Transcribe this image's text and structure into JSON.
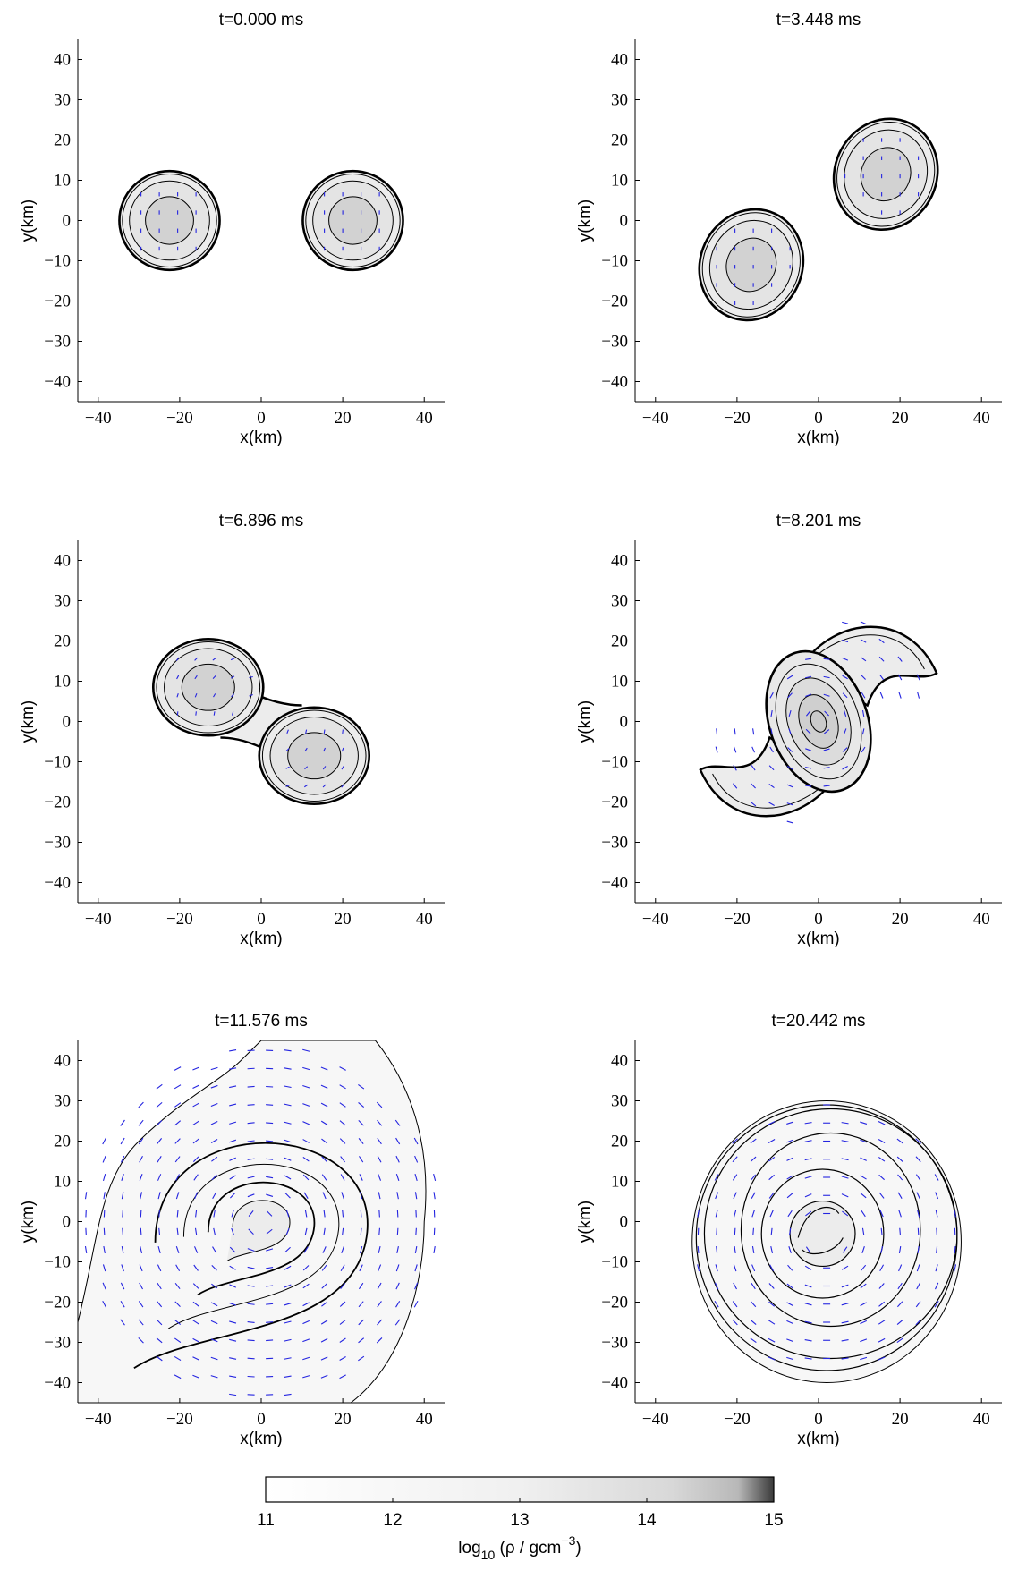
{
  "chart_data": [
    {
      "type": "contour",
      "title": "t=0.000 ms",
      "xlabel": "x(km)",
      "ylabel": "y(km)",
      "xlim": [
        -45,
        45
      ],
      "ylim": [
        -45,
        45
      ],
      "xticks": [
        -40,
        -20,
        0,
        20,
        40
      ],
      "yticks": [
        40,
        30,
        20,
        10,
        0,
        -10,
        -20,
        -30,
        -40
      ],
      "stars": [
        {
          "cx": -22.5,
          "cy": 0,
          "rx": 12.3,
          "ry": 12.3,
          "angle": 0
        },
        {
          "cx": 22.5,
          "cy": 0,
          "rx": 12.3,
          "ry": 12.3,
          "angle": 0
        }
      ]
    },
    {
      "type": "contour",
      "title": "t=3.448 ms",
      "xlabel": "x(km)",
      "ylabel": "y(km)",
      "xlim": [
        -45,
        45
      ],
      "ylim": [
        -45,
        45
      ],
      "xticks": [
        -40,
        -20,
        0,
        20,
        40
      ],
      "yticks": [
        40,
        30,
        20,
        10,
        0,
        -10,
        -20,
        -30,
        -40
      ],
      "stars": [
        {
          "cx": -16.5,
          "cy": -11,
          "rx": 12.5,
          "ry": 14,
          "angle": -25
        },
        {
          "cx": 16.5,
          "cy": 11.5,
          "rx": 12.5,
          "ry": 14,
          "angle": -25
        }
      ]
    },
    {
      "type": "contour",
      "title": "t=6.896 ms",
      "xlabel": "x(km)",
      "ylabel": "y(km)",
      "xlim": [
        -45,
        45
      ],
      "ylim": [
        -45,
        45
      ],
      "xticks": [
        -40,
        -20,
        0,
        20,
        40
      ],
      "yticks": [
        40,
        30,
        20,
        10,
        0,
        -10,
        -20,
        -30,
        -40
      ],
      "stars": [
        {
          "cx": -13,
          "cy": 8.5,
          "rx": 13.5,
          "ry": 12,
          "angle": 0
        },
        {
          "cx": 13,
          "cy": -8.5,
          "rx": 13.5,
          "ry": 12,
          "angle": 0
        }
      ]
    },
    {
      "type": "contour",
      "title": "t=8.201 ms",
      "xlabel": "x(km)",
      "ylabel": "y(km)",
      "xlim": [
        -45,
        45
      ],
      "ylim": [
        -45,
        45
      ],
      "xticks": [
        -40,
        -20,
        0,
        20,
        40
      ],
      "yticks": [
        40,
        30,
        20,
        10,
        0,
        -10,
        -20,
        -30,
        -40
      ],
      "stars": [
        {
          "cx": 0,
          "cy": 0,
          "rx": 12,
          "ry": 18,
          "angle": 20
        }
      ]
    },
    {
      "type": "contour",
      "title": "t=11.576 ms",
      "xlabel": "x(km)",
      "ylabel": "y(km)",
      "xlim": [
        -45,
        45
      ],
      "ylim": [
        -45,
        45
      ],
      "xticks": [
        -40,
        -20,
        0,
        20,
        40
      ],
      "yticks": [
        40,
        30,
        20,
        10,
        0,
        -10,
        -20,
        -30,
        -40
      ],
      "stars": []
    },
    {
      "type": "contour",
      "title": "t=20.442 ms",
      "xlabel": "x(km)",
      "ylabel": "y(km)",
      "xlim": [
        -45,
        45
      ],
      "ylim": [
        -45,
        45
      ],
      "xticks": [
        -40,
        -20,
        0,
        20,
        40
      ],
      "yticks": [
        40,
        30,
        20,
        10,
        0,
        -10,
        -20,
        -30,
        -40
      ],
      "stars": []
    }
  ],
  "colorbar": {
    "ticks": [
      11,
      12,
      13,
      14,
      15
    ],
    "label": "log10 (ρ / gcm−3)",
    "range": [
      11,
      15
    ]
  }
}
